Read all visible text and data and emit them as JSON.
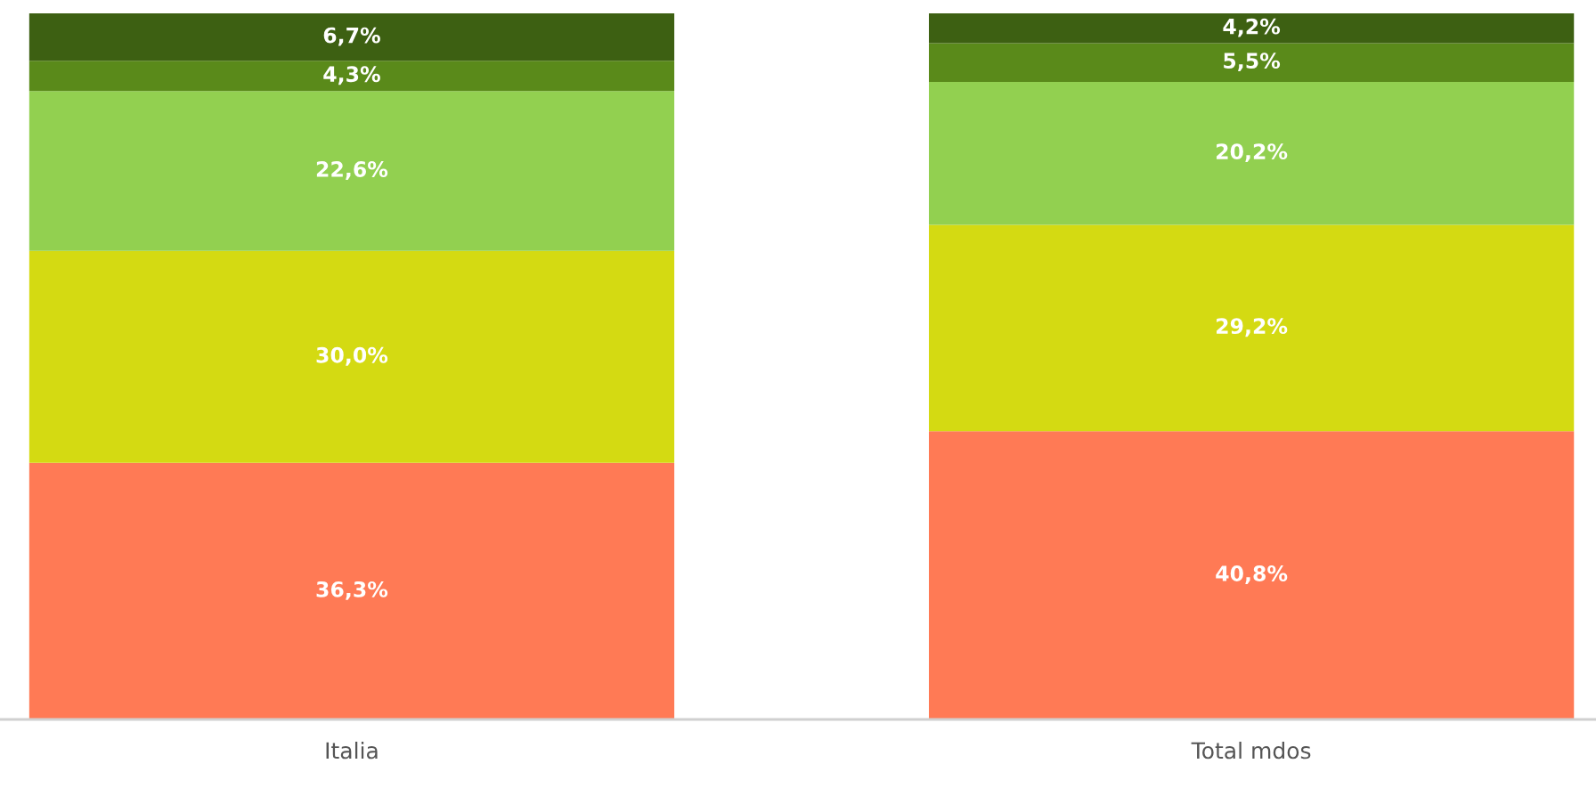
{
  "chart_data": {
    "type": "bar",
    "stacked": true,
    "categories": [
      "Italia",
      "Total mdos"
    ],
    "series": [
      {
        "color": "#ff7a55",
        "values": [
          36.3,
          40.8
        ],
        "value_labels": [
          "36,3%",
          "40,8%"
        ]
      },
      {
        "color": "#d4da12",
        "values": [
          30.0,
          29.2
        ],
        "value_labels": [
          "30,0%",
          "29,2%"
        ]
      },
      {
        "color": "#92d050",
        "values": [
          22.6,
          20.2
        ],
        "value_labels": [
          "22,6%",
          "20,2%"
        ]
      },
      {
        "color": "#5a8a1a",
        "values": [
          4.3,
          5.5
        ],
        "value_labels": [
          "4,3%",
          "5,5%"
        ]
      },
      {
        "color": "#3d6012",
        "values": [
          6.7,
          4.2
        ],
        "value_labels": [
          "6,7%",
          "4,2%"
        ]
      }
    ],
    "grid": false,
    "legend": false
  }
}
